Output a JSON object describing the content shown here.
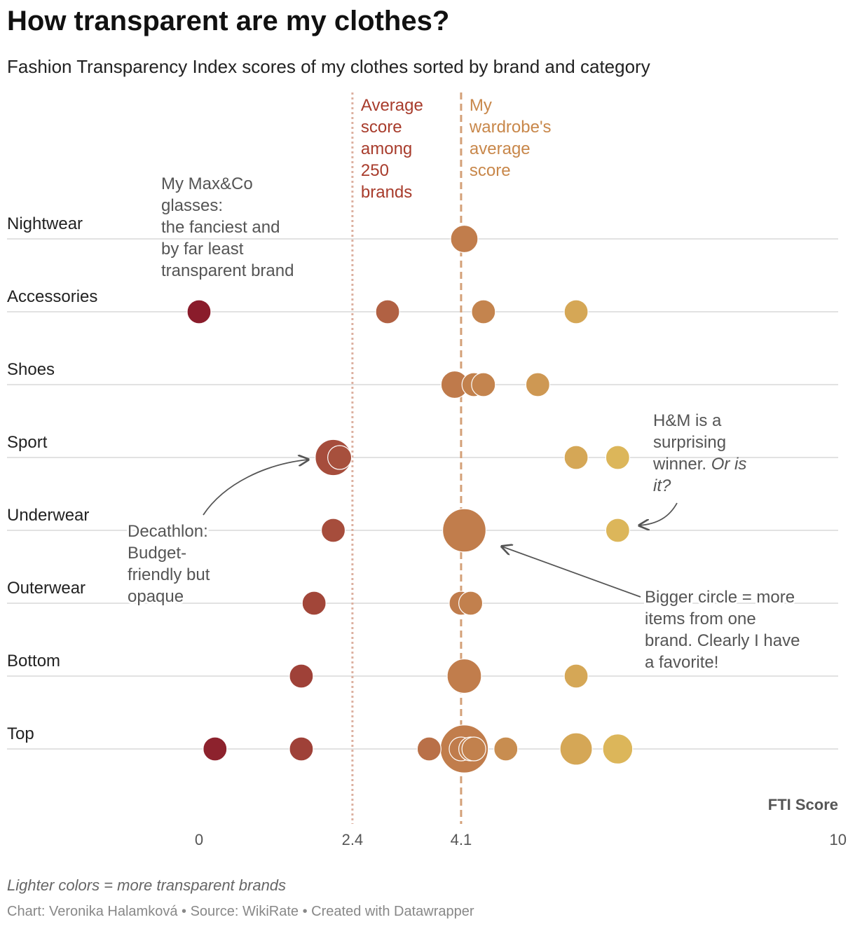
{
  "header": {
    "title": "How transparent are my clothes?",
    "subtitle": "Fashion Transparency Index scores of my clothes sorted by brand and category"
  },
  "footer": {
    "note": "Lighter colors = more transparent brands",
    "credit": "Chart: Veronika Halamková • Source: WikiRate • Created with Datawrapper"
  },
  "colors": {
    "low": "#8a1c2b",
    "mid": "#c07c4c",
    "high": "#dcb65a",
    "avg_all_line": "#dcb0a0",
    "avg_mine_line": "#d4a078",
    "avg_all_text": "#a83c2c",
    "avg_mine_text": "#c8874a",
    "grid": "#d8d8d8",
    "annotation": "#555555"
  },
  "chart_data": {
    "type": "scatter",
    "title": "How transparent are my clothes?",
    "xlabel": "FTI Score",
    "xlim": [
      0,
      10
    ],
    "x_ticks": [
      "0",
      "2.4",
      "4.1",
      "10"
    ],
    "size_meaning": "number of items from one brand",
    "categories": [
      "Nightwear",
      "Accessories",
      "Shoes",
      "Sport",
      "Underwear",
      "Outerwear",
      "Bottom",
      "Top"
    ],
    "reference_lines": [
      {
        "name": "average-all-brands",
        "value": 2.4,
        "label": "Average score among 250 brands",
        "label_lines": [
          "Average",
          "score",
          "among",
          "250",
          "brands"
        ]
      },
      {
        "name": "wardrobe-average",
        "value": 4.1,
        "label": "My wardrobe's average score",
        "label_lines": [
          "My",
          "wardrobe's",
          "average",
          "score"
        ]
      }
    ],
    "points": [
      {
        "category": "Nightwear",
        "x": 4.15,
        "count": 2
      },
      {
        "category": "Accessories",
        "x": 0.0,
        "count": 1
      },
      {
        "category": "Accessories",
        "x": 2.95,
        "count": 1
      },
      {
        "category": "Accessories",
        "x": 4.45,
        "count": 1
      },
      {
        "category": "Accessories",
        "x": 5.9,
        "count": 1
      },
      {
        "category": "Shoes",
        "x": 4.0,
        "count": 2
      },
      {
        "category": "Shoes",
        "x": 4.3,
        "count": 1
      },
      {
        "category": "Shoes",
        "x": 4.45,
        "count": 1
      },
      {
        "category": "Shoes",
        "x": 5.3,
        "count": 1
      },
      {
        "category": "Sport",
        "x": 2.1,
        "count": 6
      },
      {
        "category": "Sport",
        "x": 2.2,
        "count": 1
      },
      {
        "category": "Sport",
        "x": 5.9,
        "count": 1
      },
      {
        "category": "Sport",
        "x": 6.55,
        "count": 1
      },
      {
        "category": "Underwear",
        "x": 2.1,
        "count": 1
      },
      {
        "category": "Underwear",
        "x": 4.15,
        "count": 11
      },
      {
        "category": "Underwear",
        "x": 6.55,
        "count": 1
      },
      {
        "category": "Outerwear",
        "x": 1.8,
        "count": 1
      },
      {
        "category": "Outerwear",
        "x": 4.1,
        "count": 1
      },
      {
        "category": "Outerwear",
        "x": 4.25,
        "count": 1
      },
      {
        "category": "Bottom",
        "x": 1.6,
        "count": 1
      },
      {
        "category": "Bottom",
        "x": 4.15,
        "count": 5
      },
      {
        "category": "Bottom",
        "x": 5.9,
        "count": 1
      },
      {
        "category": "Top",
        "x": 0.25,
        "count": 1
      },
      {
        "category": "Top",
        "x": 1.6,
        "count": 1
      },
      {
        "category": "Top",
        "x": 3.6,
        "count": 1
      },
      {
        "category": "Top",
        "x": 4.15,
        "count": 15
      },
      {
        "category": "Top",
        "x": 4.1,
        "count": 1
      },
      {
        "category": "Top",
        "x": 4.25,
        "count": 1
      },
      {
        "category": "Top",
        "x": 4.3,
        "count": 1
      },
      {
        "category": "Top",
        "x": 4.8,
        "count": 1
      },
      {
        "category": "Top",
        "x": 5.9,
        "count": 4
      },
      {
        "category": "Top",
        "x": 6.55,
        "count": 3
      }
    ],
    "annotations": [
      {
        "name": "maxco-annotation",
        "text_lines": [
          "My Max&Co",
          "glasses:",
          "the fanciest and",
          "by far least",
          "transparent brand"
        ],
        "italic_suffix": ""
      },
      {
        "name": "hm-annotation",
        "text_lines": [
          "H&M is a",
          "surprising",
          "winner. ",
          "it?"
        ],
        "italic_parts": [
          "Or is",
          "it?"
        ]
      },
      {
        "name": "decathlon-annotation",
        "text_lines": [
          "Decathlon:",
          "Budget-",
          "friendly but",
          "opaque"
        ]
      },
      {
        "name": "size-annotation",
        "text_lines": [
          "Bigger circle = more",
          "items from one",
          "brand. Clearly I have",
          "a favorite!"
        ]
      }
    ]
  }
}
